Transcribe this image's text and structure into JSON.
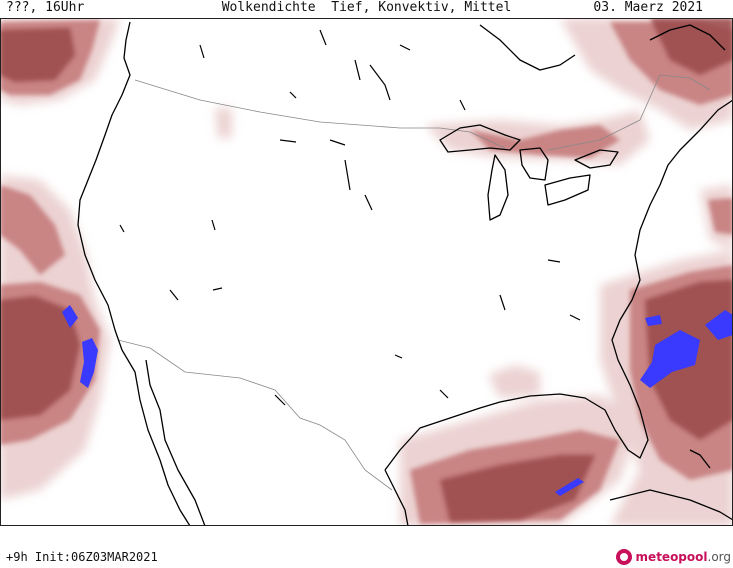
{
  "header": {
    "left": "???, 16Uhr",
    "title": "Wolkendichte  Tief, Konvektiv, Mittel",
    "date": "03. Maerz 2021"
  },
  "footer": {
    "run": "+9h Init:06Z03MAR2021",
    "brand_main": "meteopool",
    "brand_tld": ".org"
  },
  "colors": {
    "cloud_light": "#ecd2d2",
    "cloud_medium": "#c98484",
    "cloud_dense": "#9a4a4a",
    "convective": "#3a3aff",
    "coastline": "#000000",
    "border": "#888888",
    "brand": "#c8105a"
  }
}
